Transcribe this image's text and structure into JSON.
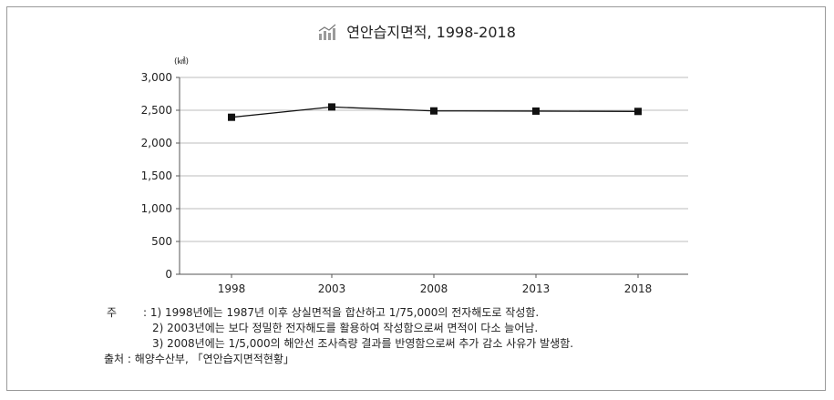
{
  "chart_data": {
    "type": "line",
    "title": "연안습지면적, 1998-2018",
    "ylabel": "(㎢)",
    "xlabel": "",
    "categories": [
      "1998",
      "2003",
      "2008",
      "2013",
      "2018"
    ],
    "series": [
      {
        "values": [
          2393,
          2550,
          2490,
          2487,
          2482
        ]
      }
    ],
    "ylim": [
      0,
      3000
    ],
    "yticks": [
      "0",
      "500",
      "1,000",
      "1,500",
      "2,000",
      "2,500",
      "3,000"
    ],
    "grid": true,
    "legend": "none"
  },
  "notes": {
    "label": "주",
    "line1": ": 1) 1998년에는 1987년 이후 상실면적을 합산하고 1/75,000의 전자해도로 작성함.",
    "line2": "2) 2003년에는 보다 정밀한 전자해도를 활용하여 작성함으로써 면적이 다소 늘어남.",
    "line3": "3) 2008년에는 1/5,000의 해안선 조사측량 결과를 반영함으로써 추가 감소 사유가 발생함.",
    "source": "출처 : 해양수산부, 「연안습지면적현황」"
  },
  "colors": {
    "line": "#111111",
    "grid": "#bdbdbd",
    "axis": "#555555"
  },
  "icons": {
    "title_icon": "bar-chart-icon"
  }
}
